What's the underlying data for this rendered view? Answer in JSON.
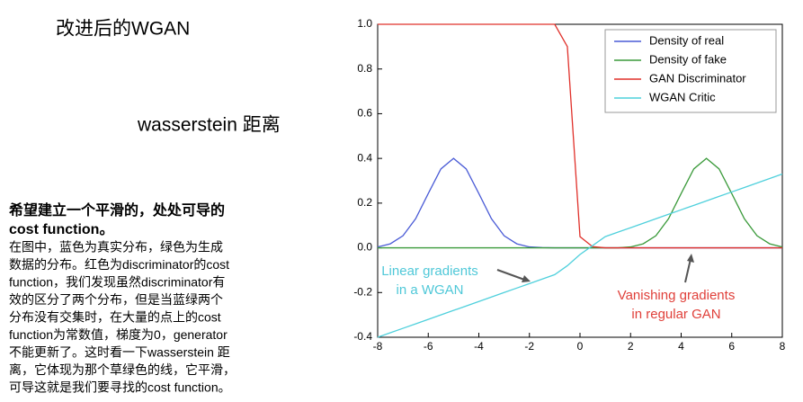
{
  "slide": {
    "title": "改进后的WGAN",
    "subtitle": "wasserstein 距离",
    "heading": [
      "希望建立一个平滑的，处处可导的",
      "cost function。"
    ],
    "body": [
      "在图中，蓝色为真实分布，绿色为生成",
      "数据的分布。红色为discriminator的cost",
      "function，我们发现虽然discriminator有",
      "效的区分了两个分布，但是当蓝绿两个",
      "分布没有交集时，在大量的点上的cost",
      "function为常数值，梯度为0，generator",
      "不能更新了。这时看一下wasserstein 距",
      "离，它体现为那个草绿色的线，它平滑，",
      "可导这就是我们要寻找的cost function。"
    ]
  },
  "chart_data": {
    "type": "line",
    "x": [
      -8,
      -7.5,
      -7,
      -6.5,
      -6,
      -5.5,
      -5,
      -4.5,
      -4,
      -3.5,
      -3,
      -2.5,
      -2,
      -1.5,
      -1,
      -0.5,
      0,
      0.5,
      1,
      1.5,
      2,
      2.5,
      3,
      3.5,
      4,
      4.5,
      5,
      5.5,
      6,
      6.5,
      7,
      7.5,
      8
    ],
    "series": [
      {
        "name": "Density of real",
        "color": "#4a5bd6",
        "values": [
          0.004,
          0.018,
          0.054,
          0.13,
          0.243,
          0.353,
          0.4,
          0.353,
          0.243,
          0.13,
          0.054,
          0.018,
          0.004,
          0.001,
          0,
          0,
          0,
          0,
          0,
          0,
          0,
          0,
          0,
          0,
          0,
          0,
          0,
          0,
          0,
          0,
          0,
          0,
          0
        ]
      },
      {
        "name": "Density of fake",
        "color": "#3a9a3a",
        "values": [
          0,
          0,
          0,
          0,
          0,
          0,
          0,
          0,
          0,
          0,
          0,
          0,
          0,
          0,
          0,
          0,
          0,
          0,
          0,
          0,
          0.004,
          0.018,
          0.054,
          0.13,
          0.243,
          0.353,
          0.4,
          0.353,
          0.243,
          0.13,
          0.054,
          0.018,
          0.004
        ]
      },
      {
        "name": "GAN Discriminator",
        "color": "#e0302a",
        "values": [
          1,
          1,
          1,
          1,
          1,
          1,
          1,
          1,
          1,
          1,
          1,
          1,
          1,
          1,
          1,
          0.9,
          0.05,
          0.005,
          0,
          0,
          0,
          0,
          0,
          0,
          0,
          0,
          0,
          0,
          0,
          0,
          0,
          0,
          0
        ]
      },
      {
        "name": "WGAN Critic",
        "color": "#4fd0dc",
        "values": [
          -0.4,
          -0.38,
          -0.36,
          -0.34,
          -0.32,
          -0.3,
          -0.28,
          -0.26,
          -0.24,
          -0.22,
          -0.2,
          -0.18,
          -0.16,
          -0.14,
          -0.12,
          -0.08,
          -0.03,
          0.01,
          0.05,
          0.07,
          0.09,
          0.11,
          0.13,
          0.15,
          0.17,
          0.19,
          0.21,
          0.23,
          0.25,
          0.27,
          0.29,
          0.31,
          0.33
        ]
      }
    ],
    "xlim": [
      -8,
      8
    ],
    "ylim": [
      -0.4,
      1.0
    ],
    "xticks": [
      -8,
      -6,
      -4,
      -2,
      0,
      2,
      4,
      6,
      8
    ],
    "yticks": [
      -0.4,
      -0.2,
      {
        "value": 0,
        "label": "0.0"
      },
      0.2,
      0.4,
      0.6,
      0.8,
      {
        "value": 1,
        "label": "1.0"
      }
    ],
    "legend": "upper right",
    "annotations": [
      {
        "text": [
          "Linear gradients",
          "in a WGAN"
        ],
        "color": "#4fc8d8"
      },
      {
        "text": [
          "Vanishing gradients",
          "in regular GAN"
        ],
        "color": "#e0403a"
      }
    ]
  }
}
